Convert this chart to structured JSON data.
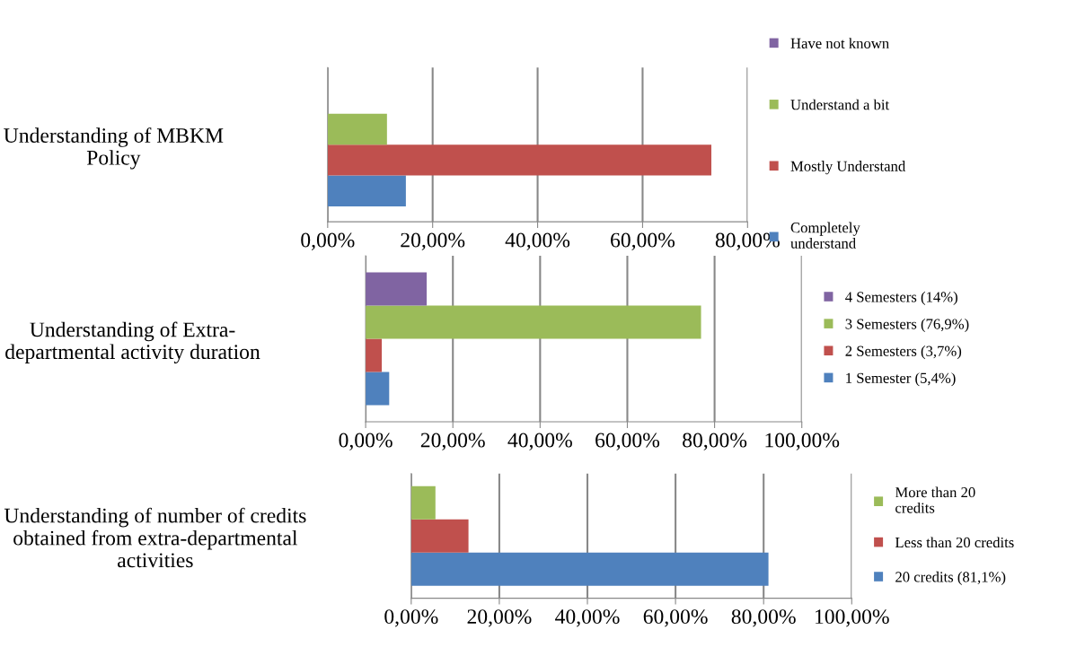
{
  "chart_data": [
    {
      "type": "bar",
      "orientation": "horizontal",
      "categories": [
        "Understanding of MBKM\nPolicy"
      ],
      "legend": "right",
      "grid": "x",
      "xlim": [
        0,
        80
      ],
      "xticks": [
        {
          "value": 0,
          "label": "0,00%"
        },
        {
          "value": 20,
          "label": "20,00%"
        },
        {
          "value": 40,
          "label": "40,00%"
        },
        {
          "value": 60,
          "label": "60,00%"
        },
        {
          "value": 80,
          "label": "80,00%"
        }
      ],
      "series": [
        {
          "name": "Completely\nunderstand",
          "color": "#4f81bd",
          "values": [
            14.9
          ]
        },
        {
          "name": "Mostly Understand",
          "color": "#c0504d",
          "values": [
            73.1
          ]
        },
        {
          "name": "Understand a bit",
          "color": "#9bbb59",
          "values": [
            11.3
          ]
        },
        {
          "name": "Have not known",
          "color": "#8064a2",
          "values": [
            0
          ]
        }
      ]
    },
    {
      "type": "bar",
      "orientation": "horizontal",
      "categories": [
        "Understanding of Extra-\ndepartmental activity duration"
      ],
      "legend": "right",
      "grid": "x",
      "xlim": [
        0,
        100
      ],
      "xticks": [
        {
          "value": 0,
          "label": "0,00%"
        },
        {
          "value": 20,
          "label": "20,00%"
        },
        {
          "value": 40,
          "label": "40,00%"
        },
        {
          "value": 60,
          "label": "60,00%"
        },
        {
          "value": 80,
          "label": "80,00%"
        },
        {
          "value": 100,
          "label": "100,00%"
        }
      ],
      "series": [
        {
          "name": "1 Semester (5,4%)",
          "color": "#4f81bd",
          "values": [
            5.4
          ]
        },
        {
          "name": "2 Semesters (3,7%)",
          "color": "#c0504d",
          "values": [
            3.7
          ]
        },
        {
          "name": "3 Semesters (76,9%)",
          "color": "#9bbb59",
          "values": [
            76.9
          ]
        },
        {
          "name": "4 Semesters (14%)",
          "color": "#8064a2",
          "values": [
            14
          ]
        }
      ]
    },
    {
      "type": "bar",
      "orientation": "horizontal",
      "categories": [
        "Understanding of number of credits\nobtained from extra-departmental\nactivities"
      ],
      "legend": "right",
      "grid": "x",
      "xlim": [
        0,
        100
      ],
      "xticks": [
        {
          "value": 0,
          "label": "0,00%"
        },
        {
          "value": 20,
          "label": "20,00%"
        },
        {
          "value": 40,
          "label": "40,00%"
        },
        {
          "value": 60,
          "label": "60,00%"
        },
        {
          "value": 80,
          "label": "80,00%"
        },
        {
          "value": 100,
          "label": "100,00%"
        }
      ],
      "series": [
        {
          "name": "20 credits (81,1%)",
          "color": "#4f81bd",
          "values": [
            81.1
          ]
        },
        {
          "name": "Less than 20 credits",
          "color": "#c0504d",
          "values": [
            13.0
          ]
        },
        {
          "name": "More than 20\ncredits",
          "color": "#9bbb59",
          "values": [
            5.5
          ]
        }
      ]
    }
  ]
}
